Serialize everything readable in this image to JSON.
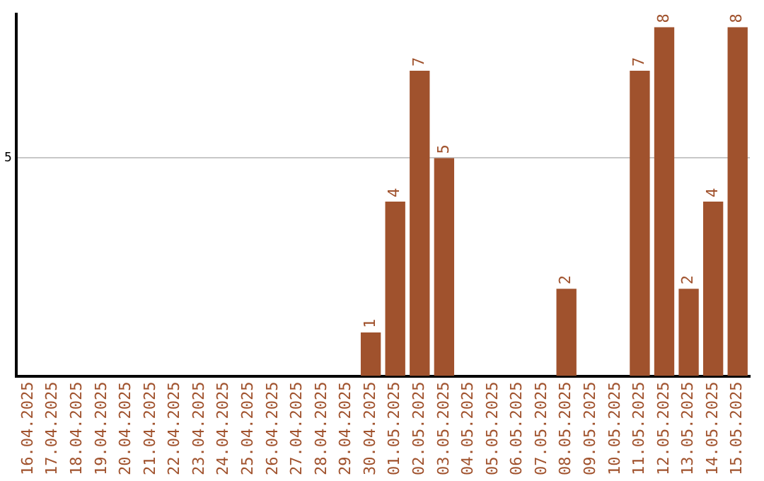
{
  "chart_data": {
    "type": "bar",
    "categories": [
      "16.04.2025",
      "17.04.2025",
      "18.04.2025",
      "19.04.2025",
      "20.04.2025",
      "21.04.2025",
      "22.04.2025",
      "23.04.2025",
      "24.04.2025",
      "25.04.2025",
      "26.04.2025",
      "27.04.2025",
      "28.04.2025",
      "29.04.2025",
      "30.04.2025",
      "01.05.2025",
      "02.05.2025",
      "03.05.2025",
      "04.05.2025",
      "05.05.2025",
      "06.05.2025",
      "07.05.2025",
      "08.05.2025",
      "09.05.2025",
      "10.05.2025",
      "11.05.2025",
      "12.05.2025",
      "13.05.2025",
      "14.05.2025",
      "15.05.2025"
    ],
    "values": [
      null,
      null,
      null,
      null,
      null,
      null,
      null,
      null,
      null,
      null,
      null,
      null,
      null,
      null,
      1,
      4,
      7,
      5,
      null,
      null,
      null,
      null,
      2,
      null,
      null,
      7,
      8,
      2,
      4,
      8
    ],
    "data_labels": true,
    "color": "#a0522d",
    "ylim": [
      0,
      8.3
    ],
    "yticks": [
      5
    ],
    "grid": "y"
  }
}
